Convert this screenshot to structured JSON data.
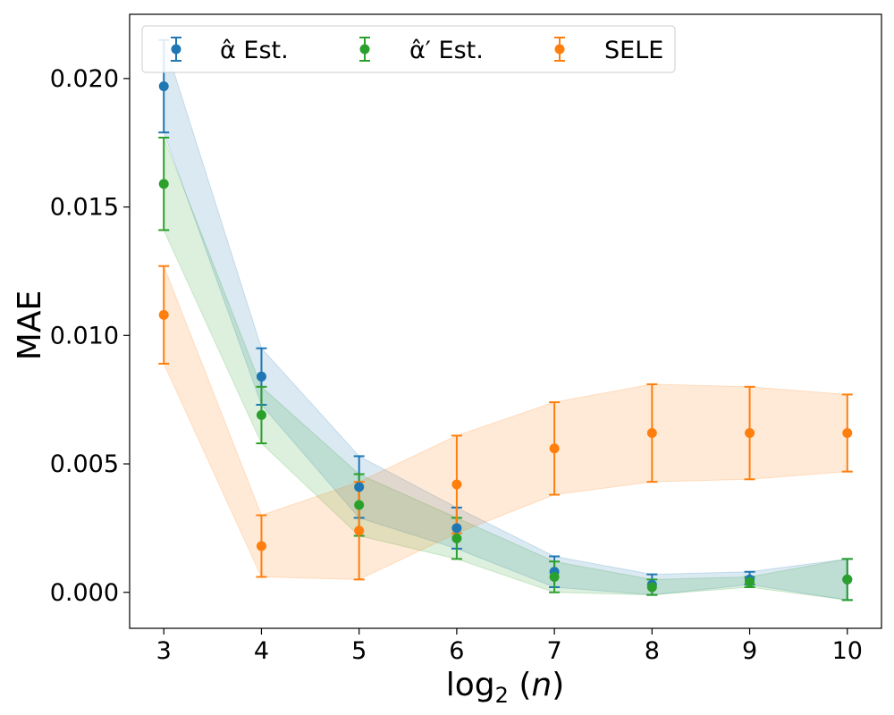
{
  "chart_data": {
    "type": "scatter",
    "title": "",
    "xlabel": "log2(n)",
    "ylabel": "MAE",
    "x": [
      3,
      4,
      5,
      6,
      7,
      8,
      9,
      10
    ],
    "xlim": [
      2.65,
      10.35
    ],
    "ylim": [
      -0.0014,
      0.0225
    ],
    "xticks": [
      3,
      4,
      5,
      6,
      7,
      8,
      9,
      10
    ],
    "yticks": [
      0.0,
      0.005,
      0.01,
      0.015,
      0.02
    ],
    "ytick_labels": [
      "0.000",
      "0.005",
      "0.010",
      "0.015",
      "0.020"
    ],
    "grid": false,
    "legend_position": "top",
    "series": [
      {
        "name": "α̂ Est.",
        "color": "#1f77b4",
        "values": [
          0.0197,
          0.0084,
          0.0041,
          0.0025,
          0.0008,
          0.0003,
          0.0005,
          0.0005
        ],
        "lower": [
          0.0179,
          0.0073,
          0.0029,
          0.0017,
          0.0002,
          -0.0001,
          0.0003,
          -0.0003
        ],
        "upper": [
          0.0215,
          0.0095,
          0.0053,
          0.0033,
          0.0014,
          0.0007,
          0.0008,
          0.0013
        ]
      },
      {
        "name": "α̂′ Est.",
        "color": "#2ca02c",
        "values": [
          0.0159,
          0.0069,
          0.0034,
          0.0021,
          0.0006,
          0.0002,
          0.0004,
          0.0005
        ],
        "lower": [
          0.0141,
          0.0058,
          0.0022,
          0.0013,
          0.0,
          -0.0001,
          0.0002,
          -0.0003
        ],
        "upper": [
          0.0177,
          0.008,
          0.0046,
          0.0029,
          0.0012,
          0.0005,
          0.0006,
          0.0013
        ]
      },
      {
        "name": "SELE",
        "color": "#ff7f0e",
        "values": [
          0.0108,
          0.0018,
          0.0024,
          0.0042,
          0.0056,
          0.0062,
          0.0062,
          0.0062
        ],
        "lower": [
          0.0089,
          0.0006,
          0.0005,
          0.0023,
          0.0038,
          0.0043,
          0.0044,
          0.0047
        ],
        "upper": [
          0.0127,
          0.003,
          0.0043,
          0.0061,
          0.0074,
          0.0081,
          0.008,
          0.0077
        ]
      }
    ]
  }
}
